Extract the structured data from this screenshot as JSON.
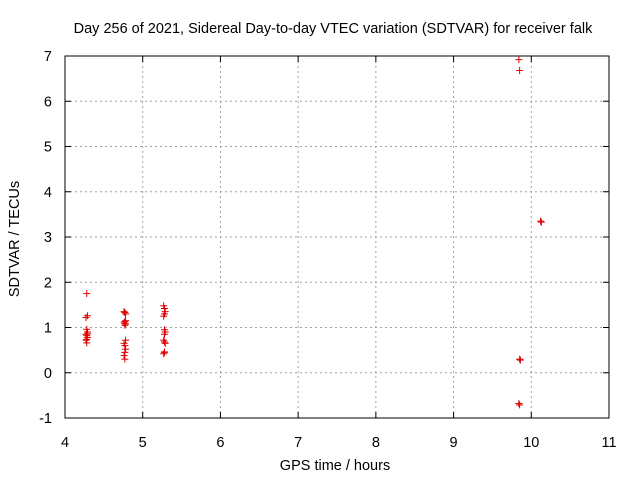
{
  "chart_data": {
    "type": "scatter",
    "title": "Day 256 of 2021, Sidereal Day-to-day VTEC variation (SDTVAR) for receiver falk",
    "xlabel": "GPS time / hours",
    "ylabel": "SDTVAR / TECUs",
    "xlim": [
      4,
      11
    ],
    "ylim": [
      -1,
      7
    ],
    "xticks": [
      4,
      5,
      6,
      7,
      8,
      9,
      10,
      11
    ],
    "yticks": [
      -1,
      0,
      1,
      2,
      3,
      4,
      5,
      6,
      7
    ],
    "xtick_labels": [
      "4",
      "5",
      "6",
      "7",
      "8",
      "9",
      "10",
      "11"
    ],
    "ytick_labels": [
      "-1",
      "0",
      "1",
      "2",
      "3",
      "4",
      "5",
      "6",
      "7"
    ],
    "grid": true,
    "marker": "+",
    "colors": {
      "points": "#dd0000",
      "grid": "#a0a0a0",
      "axes": "#000000"
    },
    "series": [
      {
        "name": "SDTVAR",
        "x": [
          4.28,
          4.29,
          4.27,
          4.28,
          4.29,
          4.27,
          4.28,
          4.29,
          4.28,
          4.27,
          4.28,
          4.29,
          4.76,
          4.77,
          4.78,
          4.77,
          4.76,
          4.78,
          4.77,
          4.78,
          4.76,
          4.77,
          4.78,
          4.77,
          4.76,
          4.77,
          4.78,
          5.27,
          5.28,
          5.29,
          5.28,
          5.27,
          5.28,
          5.29,
          5.28,
          5.27,
          5.28,
          5.29,
          5.28,
          5.27,
          5.28,
          9.84,
          9.85,
          9.85,
          9.86,
          9.84,
          9.85,
          10.12,
          10.13
        ],
        "y": [
          1.75,
          1.26,
          1.22,
          0.96,
          0.9,
          0.85,
          0.82,
          0.78,
          0.74,
          0.72,
          0.66,
          0.86,
          1.35,
          1.33,
          1.3,
          1.13,
          1.1,
          1.08,
          1.05,
          0.72,
          0.65,
          0.6,
          0.52,
          0.45,
          0.38,
          0.3,
          1.15,
          1.48,
          1.42,
          1.35,
          1.3,
          1.25,
          0.95,
          0.9,
          0.85,
          0.72,
          0.68,
          0.65,
          0.45,
          0.42,
          0.46,
          6.92,
          6.68,
          0.3,
          0.28,
          -0.68,
          -0.71,
          3.35,
          3.33
        ]
      }
    ]
  }
}
